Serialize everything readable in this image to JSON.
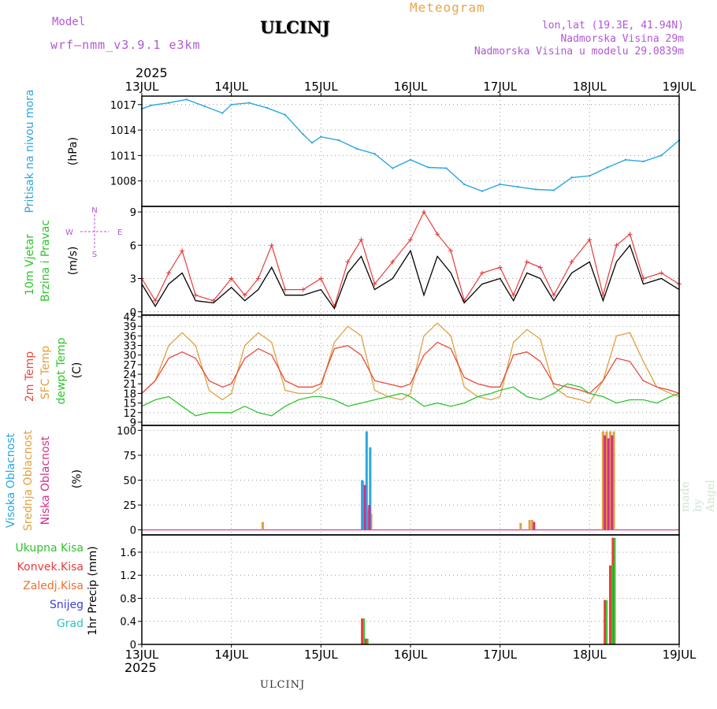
{
  "header": {
    "model_label": "Model",
    "model_name": "wrf–nmm_v3.9.1  e3km",
    "title": "ULCINJ",
    "meteogram": "Meteogram",
    "lonlat": "lon,lat (19.3E, 41.94N)",
    "elevation": "Nadmorska Visina 29m",
    "model_elevation": "Nadmorska Visina u modelu 29.0839m",
    "year_top": "2025",
    "year_bottom": "2025"
  },
  "footer": {
    "station": "ULCINJ",
    "made_by": "made by Angel"
  },
  "x_axis": {
    "ticks": [
      "13JUL",
      "14JUL",
      "15JUL",
      "16JUL",
      "17JUL",
      "18JUL",
      "19JUL"
    ]
  },
  "colors": {
    "pressure": "#2aa6e0",
    "wind_speed": "#000000",
    "wind_gust": "#e83c3c",
    "temp2m": "#e84a3c",
    "sfc_temp": "#e0a040",
    "dewpt": "#2ec42e",
    "high_cloud": "#2aa6e0",
    "mid_cloud": "#e0a040",
    "low_cloud": "#d0308a",
    "total_precip": "#2ec42e",
    "conv_precip": "#e83c3c",
    "frz_precip": "#f07030",
    "snow": "#3c3ce0",
    "hail": "#2ec4c4",
    "compass": "#b057d6"
  },
  "panels": {
    "pressure": {
      "label": "Pritisak na nivou mora",
      "unit": "(hPa)"
    },
    "wind": {
      "label1": "10m Vjetar",
      "label2": "Brzina i Pravac",
      "unit": "(m/s)",
      "compass": {
        "n": "N",
        "s": "S",
        "e": "E",
        "w": "W"
      }
    },
    "temperature": {
      "label1": "2m Temp",
      "label2": "SFC Temp",
      "label3": "dewpt Temp",
      "unit": "(C)"
    },
    "clouds": {
      "label1": "Visoka Oblacnost",
      "label2": "Srednja Oblacnost",
      "label3": "Niska Oblacnost",
      "unit": "(%)"
    },
    "precip": {
      "labels": [
        "Ukupna Kisa",
        "Konvek.Kisa",
        "Zaledj.Kisa",
        "Snijeg",
        "Grad"
      ],
      "unit": "1hr Precip (mm)"
    }
  },
  "chart_data": [
    {
      "type": "line",
      "panel": "pressure",
      "title": "",
      "xlabel": "",
      "ylabel": "(hPa)",
      "ylim": [
        1005,
        1018
      ],
      "yticks": [
        "1008",
        "1011",
        "1014",
        "1017"
      ],
      "x": [
        0,
        0.1,
        0.3,
        0.5,
        0.7,
        0.9,
        1.0,
        1.2,
        1.4,
        1.6,
        1.8,
        1.9,
        2.0,
        2.2,
        2.4,
        2.6,
        2.8,
        3.0,
        3.2,
        3.4,
        3.6,
        3.8,
        4.0,
        4.2,
        4.4,
        4.6,
        4.8,
        5.0,
        5.2,
        5.4,
        5.6,
        5.8,
        6.0
      ],
      "series": [
        {
          "values": [
            1016.5,
            1016.9,
            1017.2,
            1017.6,
            1016.8,
            1016.0,
            1017.0,
            1017.2,
            1016.6,
            1015.8,
            1013.5,
            1012.5,
            1013.2,
            1012.8,
            1011.8,
            1011.2,
            1009.5,
            1010.5,
            1009.6,
            1009.5,
            1007.6,
            1006.8,
            1007.6,
            1007.3,
            1007.0,
            1006.9,
            1008.4,
            1008.6,
            1009.6,
            1010.5,
            1010.3,
            1011.0,
            1012.8
          ]
        }
      ],
      "grid": true
    },
    {
      "type": "line",
      "panel": "wind",
      "title": "",
      "xlabel": "",
      "ylabel": "(m/s)",
      "ylim": [
        -0.3,
        9.5
      ],
      "yticks": [
        "0",
        "3",
        "6",
        "9"
      ],
      "x": [
        0,
        0.15,
        0.3,
        0.45,
        0.6,
        0.8,
        1.0,
        1.15,
        1.3,
        1.45,
        1.6,
        1.8,
        2.0,
        2.15,
        2.3,
        2.45,
        2.6,
        2.8,
        3.0,
        3.15,
        3.3,
        3.45,
        3.6,
        3.8,
        4.0,
        4.15,
        4.3,
        4.45,
        4.6,
        4.8,
        5.0,
        5.15,
        5.3,
        5.45,
        5.6,
        5.8,
        6.0
      ],
      "series": [
        {
          "name": "speed",
          "values": [
            2.5,
            0.5,
            2.5,
            3.5,
            1.0,
            0.8,
            2.2,
            1.0,
            2.0,
            4.0,
            1.5,
            1.5,
            2.0,
            0.3,
            3.5,
            5.0,
            2.0,
            3.0,
            5.5,
            1.5,
            5.0,
            3.5,
            0.8,
            2.5,
            3.0,
            1.0,
            3.5,
            3.0,
            1.0,
            3.5,
            4.5,
            1.0,
            4.5,
            6.0,
            2.5,
            3.0,
            2.0
          ]
        },
        {
          "name": "gust",
          "values": [
            3.0,
            1.0,
            3.5,
            5.5,
            1.5,
            1.0,
            3.0,
            1.5,
            3.0,
            6.0,
            2.0,
            2.0,
            3.0,
            0.5,
            4.5,
            6.5,
            2.5,
            4.5,
            6.5,
            9.0,
            7.0,
            5.5,
            1.0,
            3.5,
            4.0,
            1.5,
            4.5,
            4.0,
            1.5,
            4.5,
            6.5,
            1.5,
            6.0,
            7.0,
            3.0,
            3.5,
            2.5
          ]
        }
      ],
      "grid": true
    },
    {
      "type": "line",
      "panel": "temperature",
      "title": "",
      "xlabel": "",
      "ylabel": "(C)",
      "ylim": [
        8,
        42.5
      ],
      "yticks": [
        "9",
        "12",
        "15",
        "18",
        "21",
        "24",
        "27",
        "30",
        "33",
        "36",
        "39",
        "42"
      ],
      "x": [
        0,
        0.15,
        0.3,
        0.45,
        0.6,
        0.75,
        0.9,
        1.0,
        1.15,
        1.3,
        1.45,
        1.6,
        1.75,
        1.9,
        2.0,
        2.15,
        2.3,
        2.45,
        2.6,
        2.75,
        2.9,
        3.0,
        3.15,
        3.3,
        3.45,
        3.6,
        3.75,
        3.9,
        4.0,
        4.15,
        4.3,
        4.45,
        4.6,
        4.75,
        4.9,
        5.0,
        5.15,
        5.3,
        5.45,
        5.6,
        5.75,
        5.9,
        6.0
      ],
      "series": [
        {
          "name": "2m",
          "values": [
            18,
            22,
            29,
            31,
            29,
            22,
            20,
            21,
            29,
            32,
            30,
            22,
            20,
            20,
            21,
            32,
            33,
            30,
            22,
            21,
            20,
            21,
            30,
            34,
            32,
            23,
            21,
            20,
            20,
            30,
            31,
            28,
            21,
            20,
            19,
            18,
            22,
            29,
            28,
            22,
            20,
            19,
            18
          ]
        },
        {
          "name": "sfc",
          "values": [
            18,
            22,
            33,
            37,
            33,
            19,
            16,
            18,
            33,
            37,
            34,
            19,
            18,
            18,
            20,
            34,
            39,
            36,
            19,
            17,
            16,
            18,
            36,
            40,
            36,
            20,
            17,
            16,
            17,
            34,
            38,
            35,
            20,
            17,
            16,
            15,
            22,
            36,
            37,
            28,
            20,
            18,
            17
          ]
        },
        {
          "name": "dewpt",
          "values": [
            14,
            16,
            17,
            14,
            11,
            12,
            12,
            12,
            14,
            12,
            11,
            14,
            16,
            17,
            17,
            16,
            14,
            15,
            16,
            17,
            18,
            17,
            14,
            15,
            14,
            15,
            17,
            18,
            19,
            20,
            17,
            16,
            18,
            21,
            20,
            18,
            17,
            15,
            16,
            16,
            15,
            17,
            18
          ]
        }
      ],
      "grid": true
    },
    {
      "type": "bar",
      "panel": "clouds",
      "title": "",
      "xlabel": "",
      "ylabel": "(%)",
      "ylim": [
        -5,
        105
      ],
      "yticks": [
        "0",
        "25",
        "50",
        "75",
        "100"
      ],
      "series": [
        {
          "name": "high",
          "x": [
            2.46,
            2.51,
            2.55
          ],
          "values": [
            50,
            99,
            83
          ]
        },
        {
          "name": "mid",
          "x": [
            1.35,
            2.47,
            2.52,
            2.56,
            4.23,
            4.33,
            4.36,
            5.15,
            5.19,
            5.23,
            5.27
          ],
          "values": [
            8,
            49,
            20,
            16,
            7,
            10,
            10,
            99,
            99,
            99,
            99
          ]
        },
        {
          "name": "low",
          "x": [
            2.49,
            2.54,
            4.38,
            5.17,
            5.21,
            5.25
          ],
          "values": [
            45,
            25,
            8,
            95,
            92,
            95
          ]
        }
      ],
      "grid": true
    },
    {
      "type": "bar",
      "panel": "precip",
      "title": "",
      "xlabel": "",
      "ylabel": "1hr Precip (mm)",
      "ylim": [
        0,
        1.9
      ],
      "yticks": [
        "0",
        "0.4",
        "0.8",
        "1.2",
        "1.6"
      ],
      "series": [
        {
          "name": "total",
          "x": [
            2.46,
            2.5,
            5.17,
            5.23,
            5.26
          ],
          "values": [
            0.45,
            0.1,
            0.77,
            1.37,
            1.85
          ]
        },
        {
          "name": "conv",
          "x": [
            2.46,
            2.5,
            5.17,
            5.23,
            5.26
          ],
          "values": [
            0.45,
            0.1,
            0.77,
            1.37,
            1.85
          ]
        }
      ],
      "grid": true
    }
  ]
}
